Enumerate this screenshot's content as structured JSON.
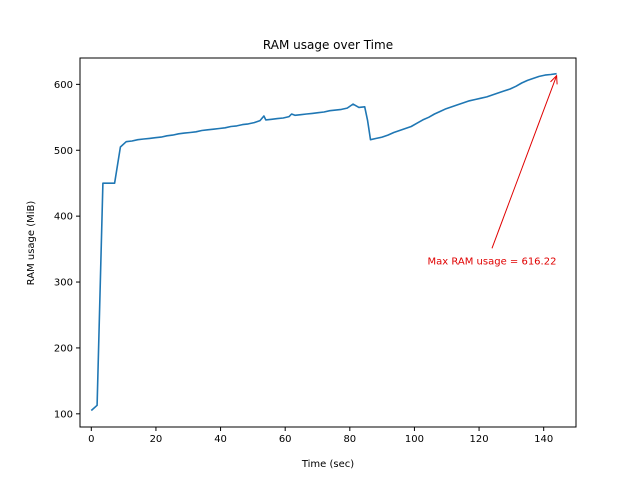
{
  "chart_data": {
    "type": "line",
    "title": "RAM usage over Time",
    "xlabel": "Time (sec)",
    "ylabel": "RAM usage (MiB)",
    "xlim": [
      -3.5,
      150
    ],
    "ylim": [
      80,
      640
    ],
    "x_ticks": [
      0,
      20,
      40,
      60,
      80,
      100,
      120,
      140
    ],
    "y_ticks": [
      100,
      200,
      300,
      400,
      500,
      600
    ],
    "grid": false,
    "line_color": "#1f77b4",
    "series": [
      {
        "x": [
          0,
          1.8,
          3.6,
          5.4,
          7.2,
          9,
          10.8,
          12.6,
          14.4,
          16.2,
          18,
          19.8,
          21.6,
          23.4,
          25.2,
          27,
          28.8,
          30.6,
          32.4,
          34.2,
          36,
          37.8,
          39.6,
          41.4,
          43.2,
          45,
          46.8,
          48.6,
          50.4,
          52.2,
          53.4,
          54,
          55.8,
          57.6,
          59.4,
          61.2,
          62,
          63,
          64.8,
          66.6,
          68.4,
          70.2,
          72,
          73.8,
          75.6,
          77.4,
          79.2,
          81,
          82.8,
          84.6,
          85.5,
          86.4,
          88.2,
          90,
          91.8,
          93.6,
          95.4,
          97.2,
          99,
          100.8,
          102.6,
          104.4,
          106.2,
          108,
          109.8,
          111.6,
          113.4,
          115.2,
          117,
          118.8,
          120.6,
          122.4,
          124.2,
          126,
          127.8,
          129.6,
          131.4,
          133.2,
          135,
          136.8,
          138.6,
          140.4,
          142.2,
          144
        ],
        "y": [
          105,
          113,
          450,
          450,
          450,
          505,
          513,
          514,
          516,
          517,
          518,
          519,
          520,
          522,
          523,
          525,
          526,
          527,
          528,
          530,
          531,
          532,
          533,
          534,
          536,
          537,
          539,
          540,
          542,
          545,
          552,
          546,
          547,
          548,
          549,
          551,
          555,
          553,
          554,
          555,
          556,
          557,
          558,
          560,
          561,
          562,
          564,
          570,
          565,
          566,
          545,
          516,
          518,
          520,
          523,
          527,
          530,
          533,
          536,
          541,
          546,
          550,
          555,
          559,
          563,
          566,
          569,
          572,
          575,
          577,
          579,
          581,
          584,
          587,
          590,
          593,
          597,
          602,
          606,
          609,
          612,
          614,
          615,
          616.22
        ]
      }
    ],
    "annotations": [
      {
        "text": "Max RAM usage = 616.22",
        "xy": [
          144,
          616.22
        ],
        "xytext": [
          124,
          330
        ],
        "color": "#e00000"
      }
    ]
  }
}
